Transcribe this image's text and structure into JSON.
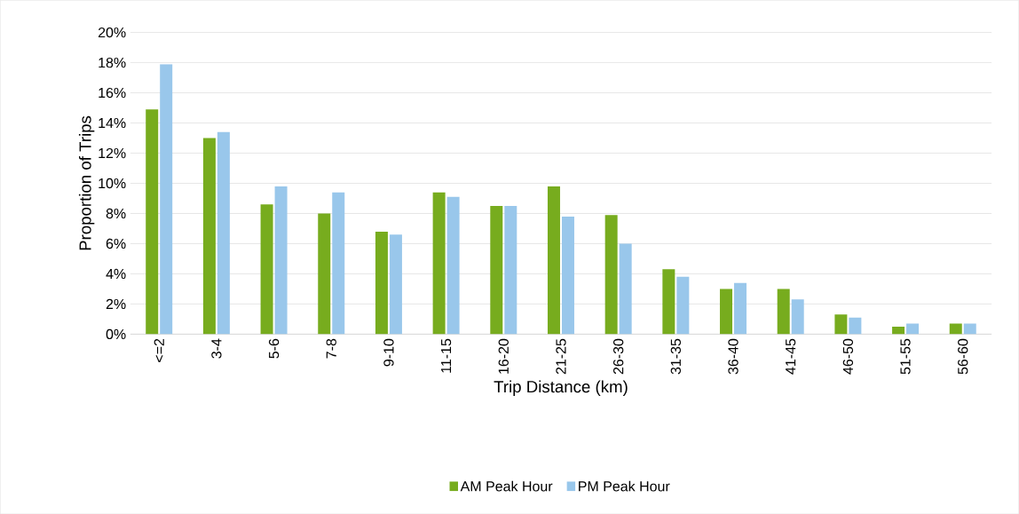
{
  "chart_data": {
    "type": "bar",
    "xlabel": "Trip Distance (km)",
    "ylabel": "Proportion of Trips",
    "categories": [
      "<=2",
      "3-4",
      "5-6",
      "7-8",
      "9-10",
      "11-15",
      "16-20",
      "21-25",
      "26-30",
      "31-35",
      "36-40",
      "41-45",
      "46-50",
      "51-55",
      "56-60"
    ],
    "series": [
      {
        "name": "AM Peak Hour",
        "color": "#77ac1e",
        "values": [
          14.9,
          13.0,
          8.6,
          8.0,
          6.8,
          9.4,
          8.5,
          9.8,
          7.9,
          4.3,
          3.0,
          3.0,
          1.3,
          0.5,
          0.7
        ]
      },
      {
        "name": "PM Peak Hour",
        "color": "#99c7eb",
        "values": [
          17.9,
          13.4,
          9.8,
          9.4,
          6.6,
          9.1,
          8.5,
          7.8,
          6.0,
          3.8,
          3.4,
          2.3,
          1.1,
          0.7,
          0.7
        ]
      }
    ],
    "ylim": [
      0,
      20
    ],
    "yticks": [
      {
        "value": 0,
        "label": "0%"
      },
      {
        "value": 2,
        "label": "2%"
      },
      {
        "value": 4,
        "label": "4%"
      },
      {
        "value": 6,
        "label": "6%"
      },
      {
        "value": 8,
        "label": "8%"
      },
      {
        "value": 10,
        "label": "10%"
      },
      {
        "value": 12,
        "label": "12%"
      },
      {
        "value": 14,
        "label": "14%"
      },
      {
        "value": 16,
        "label": "16%"
      },
      {
        "value": 18,
        "label": "18%"
      },
      {
        "value": 20,
        "label": "20%"
      }
    ],
    "grid": "y",
    "legend": "bottom"
  }
}
